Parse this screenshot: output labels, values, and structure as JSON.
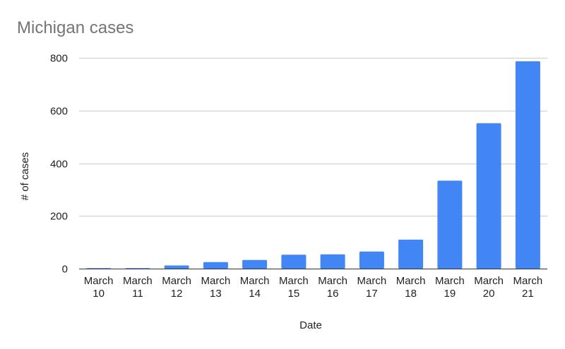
{
  "chart_data": {
    "type": "bar",
    "title": "Michigan cases",
    "xlabel": "Date",
    "ylabel": "# of cases",
    "categories": [
      [
        "March",
        "10"
      ],
      [
        "March",
        "11"
      ],
      [
        "March",
        "12"
      ],
      [
        "March",
        "13"
      ],
      [
        "March",
        "14"
      ],
      [
        "March",
        "15"
      ],
      [
        "March",
        "16"
      ],
      [
        "March",
        "17"
      ],
      [
        "March",
        "18"
      ],
      [
        "March",
        "19"
      ],
      [
        "March",
        "20"
      ],
      [
        "March",
        "21"
      ]
    ],
    "values": [
      2,
      2,
      12,
      25,
      33,
      53,
      54,
      65,
      110,
      334,
      552,
      787
    ],
    "ylim": [
      0,
      800
    ],
    "yticks": [
      "0",
      "200",
      "400",
      "600",
      "800"
    ],
    "grid": true,
    "bar_color": "#4285f4"
  }
}
